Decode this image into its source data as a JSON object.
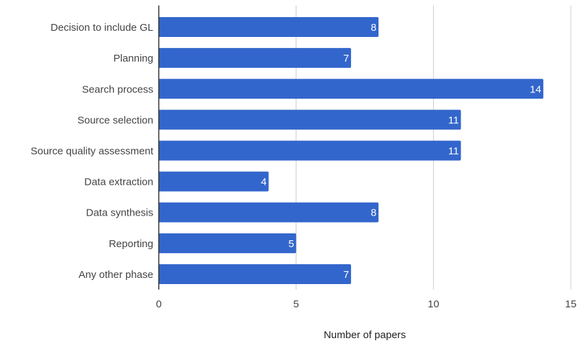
{
  "chart_data": {
    "type": "bar",
    "orientation": "horizontal",
    "categories": [
      "Decision to include GL",
      "Planning",
      "Search process",
      "Source selection",
      "Source quality assessment",
      "Data extraction",
      "Data synthesis",
      "Reporting",
      "Any other phase"
    ],
    "values": [
      8,
      7,
      14,
      11,
      11,
      4,
      8,
      5,
      7
    ],
    "xlabel": "Number of papers",
    "ylabel": "",
    "xlim": [
      0,
      15
    ],
    "xticks": [
      0,
      5,
      10,
      15
    ],
    "grid": "vertical",
    "data_labels": "inside-end",
    "bar_color": "#3366cc",
    "axis_color": "#333333",
    "gridline_color": "#cccccc",
    "label_color": "#444444"
  }
}
